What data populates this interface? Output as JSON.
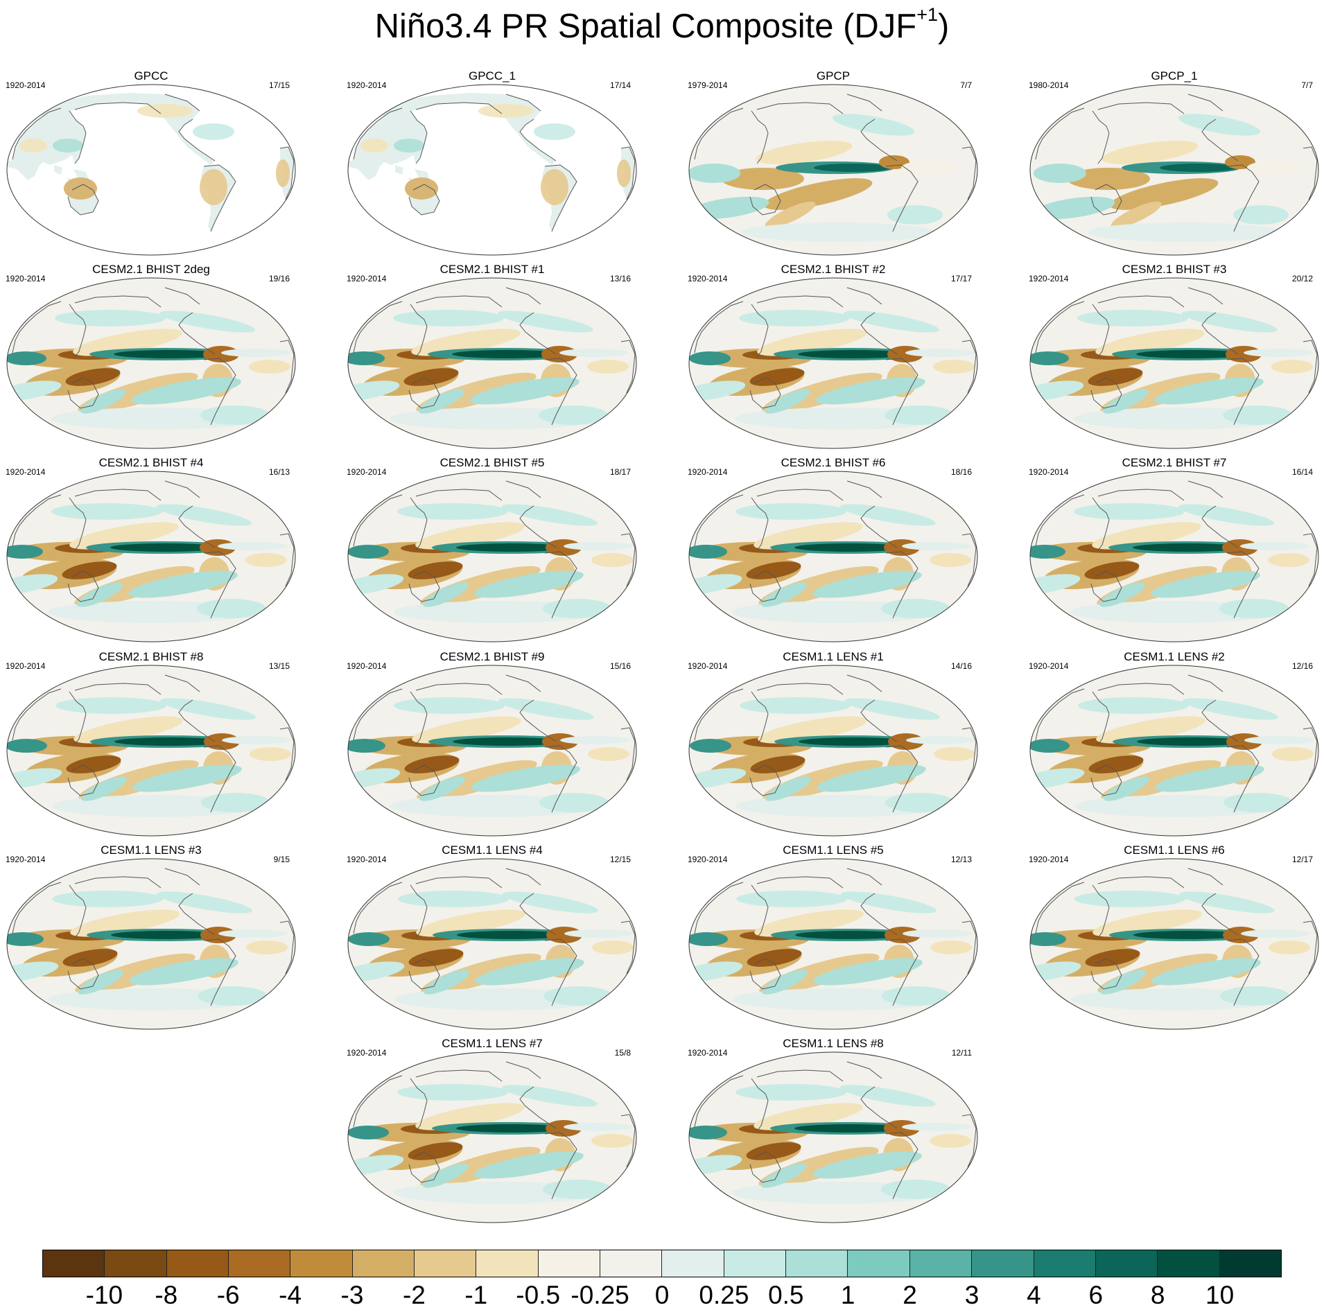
{
  "chart_data": {
    "type": "heatmap",
    "title": "Niño3.4 PR Spatial Composite (DJF",
    "title_superscript": "+1",
    "title_close": ")",
    "projection": "Robinson-like global, Pacific-centered",
    "panels": [
      {
        "title": "GPCC",
        "years": "1920-2014",
        "count": "17/15",
        "kind": "obs_land"
      },
      {
        "title": "GPCC_1",
        "years": "1920-2014",
        "count": "17/14",
        "kind": "obs_land"
      },
      {
        "title": "GPCP",
        "years": "1979-2014",
        "count": "7/7",
        "kind": "obs"
      },
      {
        "title": "GPCP_1",
        "years": "1980-2014",
        "count": "7/7",
        "kind": "obs"
      },
      {
        "title": "CESM2.1 BHIST 2deg",
        "years": "1920-2014",
        "count": "19/16",
        "kind": "model"
      },
      {
        "title": "CESM2.1 BHIST #1",
        "years": "1920-2014",
        "count": "13/16",
        "kind": "model"
      },
      {
        "title": "CESM2.1 BHIST #2",
        "years": "1920-2014",
        "count": "17/17",
        "kind": "model"
      },
      {
        "title": "CESM2.1 BHIST #3",
        "years": "1920-2014",
        "count": "20/12",
        "kind": "model"
      },
      {
        "title": "CESM2.1 BHIST #4",
        "years": "1920-2014",
        "count": "16/13",
        "kind": "model"
      },
      {
        "title": "CESM2.1 BHIST #5",
        "years": "1920-2014",
        "count": "18/17",
        "kind": "model"
      },
      {
        "title": "CESM2.1 BHIST #6",
        "years": "1920-2014",
        "count": "18/16",
        "kind": "model"
      },
      {
        "title": "CESM2.1 BHIST #7",
        "years": "1920-2014",
        "count": "16/14",
        "kind": "model"
      },
      {
        "title": "CESM2.1 BHIST #8",
        "years": "1920-2014",
        "count": "13/15",
        "kind": "model"
      },
      {
        "title": "CESM2.1 BHIST #9",
        "years": "1920-2014",
        "count": "15/16",
        "kind": "model"
      },
      {
        "title": "CESM1.1 LENS #1",
        "years": "1920-2014",
        "count": "14/16",
        "kind": "model"
      },
      {
        "title": "CESM1.1 LENS #2",
        "years": "1920-2014",
        "count": "12/16",
        "kind": "model"
      },
      {
        "title": "CESM1.1 LENS #3",
        "years": "1920-2014",
        "count": "9/15",
        "kind": "model"
      },
      {
        "title": "CESM1.1 LENS #4",
        "years": "1920-2014",
        "count": "12/15",
        "kind": "model"
      },
      {
        "title": "CESM1.1 LENS #5",
        "years": "1920-2014",
        "count": "12/13",
        "kind": "model"
      },
      {
        "title": "CESM1.1 LENS #6",
        "years": "1920-2014",
        "count": "12/17",
        "kind": "model"
      },
      {
        "title": "CESM1.1 LENS #7",
        "years": "1920-2014",
        "count": "15/8",
        "kind": "model"
      },
      {
        "title": "CESM1.1 LENS #8",
        "years": "1920-2014",
        "count": "12/11",
        "kind": "model"
      }
    ],
    "colorbar": {
      "levels": [
        "-10",
        "-8",
        "-6",
        "-4",
        "-3",
        "-2",
        "-1",
        "-0.5",
        "-0.25",
        "0",
        "0.25",
        "0.5",
        "1",
        "2",
        "3",
        "4",
        "6",
        "8",
        "10"
      ],
      "colors": [
        "#5a3510",
        "#7a4a12",
        "#965918",
        "#ab6b22",
        "#c08c3c",
        "#d5ae66",
        "#e6c98f",
        "#f2e3bb",
        "#f6f1e6",
        "#f3f1eb",
        "#e3efec",
        "#c9ebe5",
        "#acdfd7",
        "#7ccbbe",
        "#5ab3a6",
        "#379488",
        "#1b7c70",
        "#0b6559",
        "#02513f",
        "#013b30"
      ]
    }
  }
}
